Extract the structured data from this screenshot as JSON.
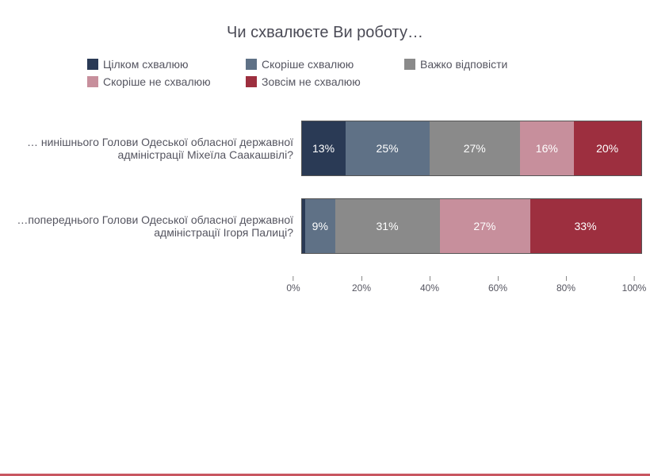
{
  "chart": {
    "type": "stacked-bar-horizontal",
    "title": "Чи схвалюєте Ви роботу…",
    "title_fontsize": 20,
    "label_fontsize": 14,
    "value_fontsize": 14,
    "tick_fontsize": 12,
    "background_color": "#ffffff",
    "accent_border_color": "#c85660",
    "legend_items": [
      {
        "label": "Цілком схвалюю",
        "color": "#2a3a55"
      },
      {
        "label": "Скоріше схвалюю",
        "color": "#5f7186"
      },
      {
        "label": "Важко відповісти",
        "color": "#8a8a8a"
      },
      {
        "label": "Скоріше не схвалюю",
        "color": "#c78f9c"
      },
      {
        "label": "Зовсім не схвалюю",
        "color": "#9d2f3f"
      }
    ],
    "rows": [
      {
        "label": "… нинішнього Голови Одеської обласної державної адміністрації Міхеїла Саакашвілі?",
        "segments": [
          {
            "value": 13,
            "display": "13%",
            "color": "#2a3a55"
          },
          {
            "value": 25,
            "display": "25%",
            "color": "#5f7186"
          },
          {
            "value": 27,
            "display": "27%",
            "color": "#8a8a8a"
          },
          {
            "value": 16,
            "display": "16%",
            "color": "#c78f9c"
          },
          {
            "value": 20,
            "display": "20%",
            "color": "#9d2f3f"
          }
        ]
      },
      {
        "label": "…попереднього Голови Одеської обласної державної адміністрації Ігоря Палиці?",
        "segments": [
          {
            "value": 1,
            "display": "",
            "color": "#2a3a55"
          },
          {
            "value": 9,
            "display": "9%",
            "color": "#5f7186"
          },
          {
            "value": 31,
            "display": "31%",
            "color": "#8a8a8a"
          },
          {
            "value": 27,
            "display": "27%",
            "color": "#c78f9c"
          },
          {
            "value": 33,
            "display": "33%",
            "color": "#9d2f3f"
          }
        ]
      }
    ],
    "xaxis": {
      "min": 0,
      "max": 100,
      "ticks": [
        0,
        20,
        40,
        60,
        80,
        100
      ],
      "tick_labels": [
        "0%",
        "20%",
        "40%",
        "60%",
        "80%",
        "100%"
      ]
    }
  }
}
